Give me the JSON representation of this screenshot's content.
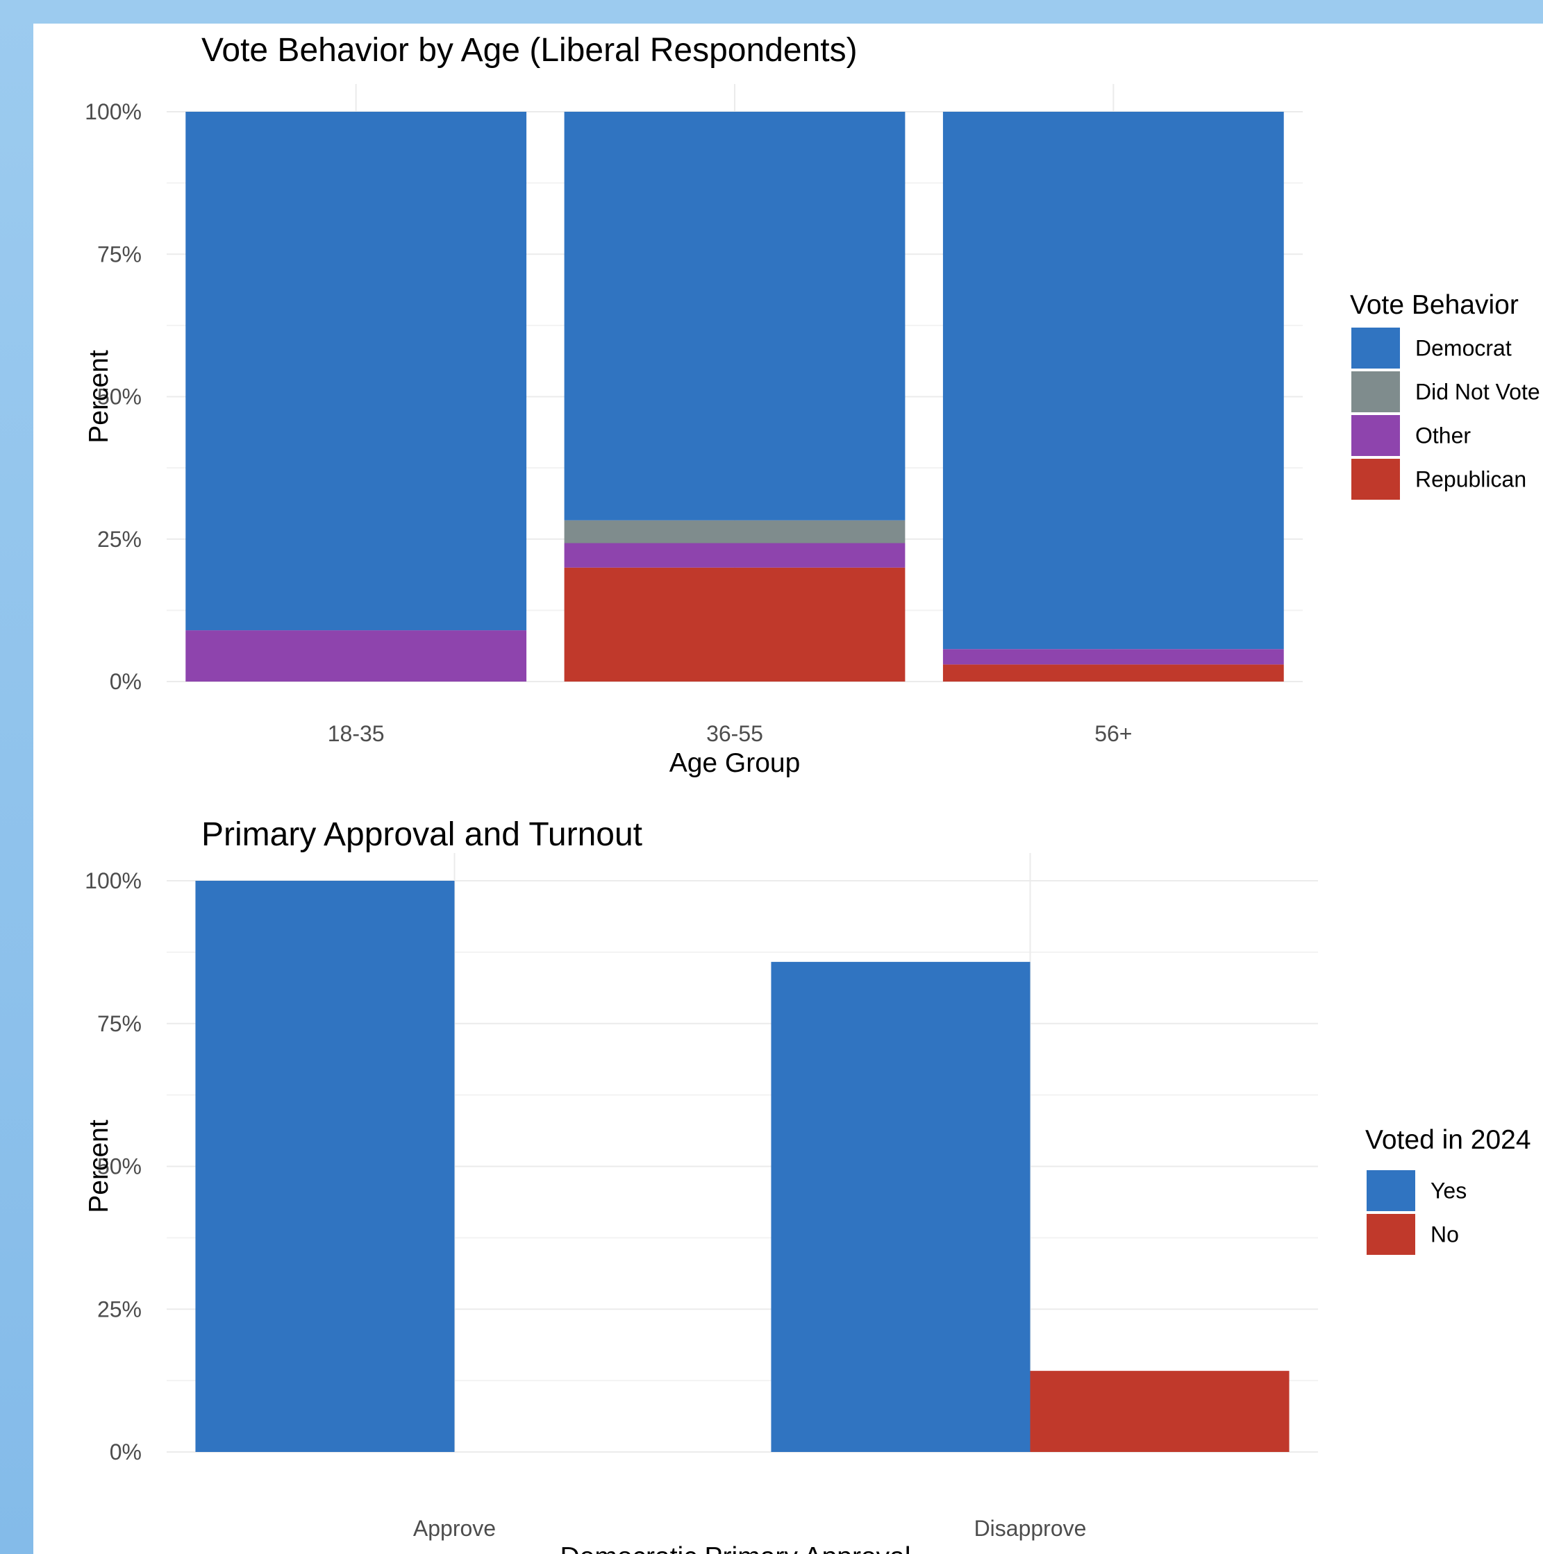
{
  "chart_data": [
    {
      "type": "bar",
      "stacked": true,
      "title": "Vote Behavior by Age (Liberal Respondents)",
      "xlabel": "Age Group",
      "ylabel": "Percent",
      "categories": [
        "18-35",
        "36-55",
        "56+"
      ],
      "ylim": [
        0,
        100
      ],
      "yticks": [
        "0%",
        "25%",
        "50%",
        "75%",
        "100%"
      ],
      "series": [
        {
          "name": "Republican",
          "color": "#c0392b",
          "values": [
            0,
            20,
            3
          ]
        },
        {
          "name": "Other",
          "color": "#8e44ad",
          "values": [
            9,
            4.3,
            2.7
          ]
        },
        {
          "name": "Did Not Vote",
          "color": "#7f8c8d",
          "values": [
            0,
            4,
            0
          ]
        },
        {
          "name": "Democrat",
          "color": "#3074c1",
          "values": [
            91,
            71.7,
            94.3
          ]
        }
      ],
      "legend": {
        "title": "Vote Behavior",
        "placement": "right",
        "items": [
          {
            "label": "Democrat",
            "color": "#3074c1"
          },
          {
            "label": "Did Not Vote",
            "color": "#7f8c8d"
          },
          {
            "label": "Other",
            "color": "#8e44ad"
          },
          {
            "label": "Republican",
            "color": "#c0392b"
          }
        ]
      },
      "grid": true
    },
    {
      "type": "bar",
      "stacked": false,
      "title": "Primary Approval and Turnout",
      "xlabel": "Democratic Primary Approval",
      "ylabel": "Percent",
      "categories": [
        "Approve",
        "Disapprove"
      ],
      "ylim": [
        0,
        100
      ],
      "yticks": [
        "0%",
        "25%",
        "50%",
        "75%",
        "100%"
      ],
      "series": [
        {
          "name": "Yes",
          "color": "#3074c1",
          "values": [
            100,
            85.8
          ]
        },
        {
          "name": "No",
          "color": "#c0392b",
          "values": [
            0,
            14.2
          ]
        }
      ],
      "legend": {
        "title": "Voted in 2024",
        "placement": "right",
        "items": [
          {
            "label": "Yes",
            "color": "#3074c1"
          },
          {
            "label": "No",
            "color": "#c0392b"
          }
        ]
      },
      "grid": true
    }
  ]
}
